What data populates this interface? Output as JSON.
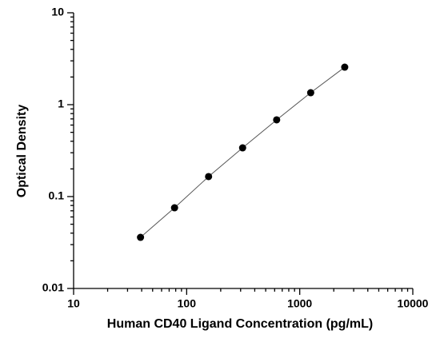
{
  "chart_data": {
    "type": "scatter",
    "x_label": "Human CD40 Ligand Concentration (pg/mL)",
    "y_label": "Optical Density",
    "x_log": true,
    "y_log": true,
    "xlim": [
      10,
      10000
    ],
    "ylim": [
      0.01,
      10
    ],
    "xticks": [
      10,
      100,
      1000,
      10000
    ],
    "yticks": [
      0.01,
      0.1,
      1,
      10
    ],
    "series": [
      {
        "color": "#000000",
        "line": true,
        "x": [
          39.06,
          78.13,
          156.25,
          312.5,
          625,
          1250,
          2500
        ],
        "values": [
          0.036,
          0.0755,
          0.165,
          0.339,
          0.684,
          1.35,
          2.56
        ]
      }
    ]
  }
}
